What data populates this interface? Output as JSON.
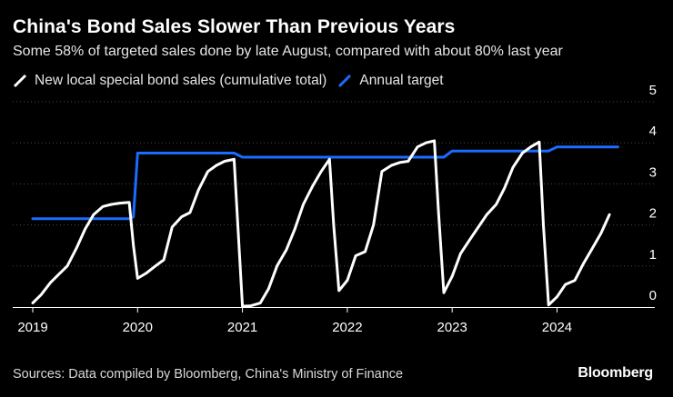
{
  "header": {
    "title": "China's Bond Sales Slower Than Previous Years",
    "subtitle": "Some 58% of targeted sales done by late August, compared with about 80% last year"
  },
  "footer": {
    "source": "Sources: Data compiled by Bloomberg, China's Ministry of Finance",
    "brand": "Bloomberg"
  },
  "colors": {
    "background": "#000000",
    "sales_line": "#ffffff",
    "target_line": "#1a6cff",
    "grid": "#4a4a4a",
    "axis": "#ffffff"
  },
  "chart_data": {
    "type": "line",
    "title": "China's Bond Sales Slower Than Previous Years",
    "xlabel": "",
    "ylabel": "",
    "xlim": [
      2019.0,
      2024.95
    ],
    "ylim": [
      0,
      5
    ],
    "x_ticks": [
      2019,
      2020,
      2021,
      2022,
      2023,
      2024
    ],
    "x_tick_labels": [
      "2019",
      "2020",
      "2021",
      "2022",
      "2023",
      "2024"
    ],
    "y_ticks": [
      0,
      1,
      2,
      3,
      4,
      5
    ],
    "y_tick_labels": [
      "0",
      "1",
      "2",
      "3",
      "4",
      "5"
    ],
    "grid": "horizontal dotted",
    "legend_position": "top-left",
    "series": [
      {
        "name": "New local special bond sales (cumulative total)",
        "color": "#ffffff",
        "points": [
          [
            2019.0,
            0.1
          ],
          [
            2019.08,
            0.3
          ],
          [
            2019.17,
            0.6
          ],
          [
            2019.25,
            0.8
          ],
          [
            2019.33,
            1.0
          ],
          [
            2019.42,
            1.45
          ],
          [
            2019.5,
            1.9
          ],
          [
            2019.58,
            2.25
          ],
          [
            2019.67,
            2.45
          ],
          [
            2019.75,
            2.5
          ],
          [
            2019.83,
            2.53
          ],
          [
            2019.92,
            2.55
          ],
          [
            2019.96,
            1.5
          ],
          [
            2020.0,
            0.7
          ],
          [
            2020.08,
            0.82
          ],
          [
            2020.17,
            1.0
          ],
          [
            2020.25,
            1.15
          ],
          [
            2020.33,
            1.95
          ],
          [
            2020.42,
            2.2
          ],
          [
            2020.5,
            2.3
          ],
          [
            2020.58,
            2.85
          ],
          [
            2020.67,
            3.3
          ],
          [
            2020.75,
            3.45
          ],
          [
            2020.83,
            3.55
          ],
          [
            2020.92,
            3.6
          ],
          [
            2020.96,
            1.8
          ],
          [
            2021.0,
            0.02
          ],
          [
            2021.08,
            0.03
          ],
          [
            2021.17,
            0.1
          ],
          [
            2021.25,
            0.45
          ],
          [
            2021.33,
            1.0
          ],
          [
            2021.42,
            1.4
          ],
          [
            2021.5,
            1.9
          ],
          [
            2021.58,
            2.5
          ],
          [
            2021.67,
            2.95
          ],
          [
            2021.75,
            3.3
          ],
          [
            2021.83,
            3.6
          ],
          [
            2021.87,
            2.0
          ],
          [
            2021.92,
            0.4
          ],
          [
            2022.0,
            0.65
          ],
          [
            2022.08,
            1.25
          ],
          [
            2022.17,
            1.35
          ],
          [
            2022.25,
            2.0
          ],
          [
            2022.33,
            3.3
          ],
          [
            2022.42,
            3.45
          ],
          [
            2022.5,
            3.52
          ],
          [
            2022.58,
            3.55
          ],
          [
            2022.67,
            3.9
          ],
          [
            2022.75,
            4.0
          ],
          [
            2022.83,
            4.05
          ],
          [
            2022.87,
            2.3
          ],
          [
            2022.92,
            0.35
          ],
          [
            2023.0,
            0.75
          ],
          [
            2023.08,
            1.3
          ],
          [
            2023.17,
            1.65
          ],
          [
            2023.25,
            1.95
          ],
          [
            2023.33,
            2.25
          ],
          [
            2023.42,
            2.5
          ],
          [
            2023.5,
            2.9
          ],
          [
            2023.58,
            3.4
          ],
          [
            2023.67,
            3.75
          ],
          [
            2023.75,
            3.9
          ],
          [
            2023.83,
            4.02
          ],
          [
            2023.87,
            2.0
          ],
          [
            2023.92,
            0.05
          ],
          [
            2024.0,
            0.25
          ],
          [
            2024.08,
            0.55
          ],
          [
            2024.17,
            0.65
          ],
          [
            2024.25,
            1.05
          ],
          [
            2024.33,
            1.4
          ],
          [
            2024.42,
            1.8
          ],
          [
            2024.5,
            2.25
          ]
        ]
      },
      {
        "name": "Annual target",
        "color": "#1a6cff",
        "points": [
          [
            2019.0,
            2.15
          ],
          [
            2019.92,
            2.15
          ],
          [
            2019.96,
            2.2
          ],
          [
            2020.0,
            3.75
          ],
          [
            2020.92,
            3.75
          ],
          [
            2021.0,
            3.65
          ],
          [
            2022.92,
            3.65
          ],
          [
            2023.0,
            3.8
          ],
          [
            2023.92,
            3.8
          ],
          [
            2024.0,
            3.9
          ],
          [
            2024.58,
            3.9
          ]
        ]
      }
    ]
  }
}
